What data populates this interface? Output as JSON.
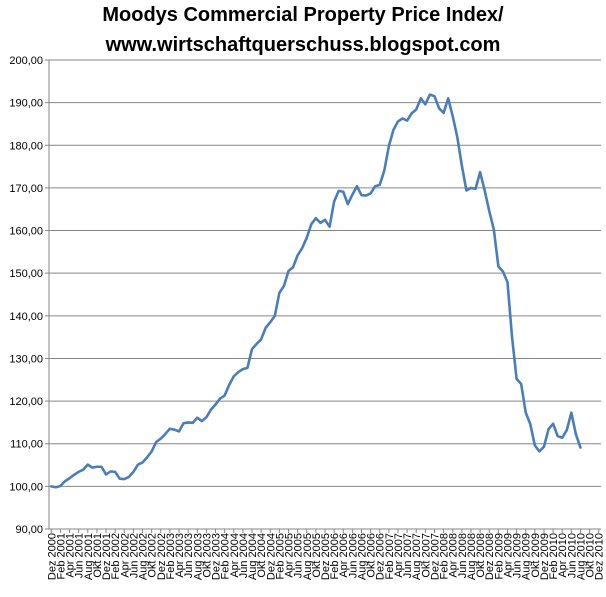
{
  "chart_data": {
    "type": "line",
    "title": "Moodys Commercial Property Price Index/",
    "subtitle": "www.wirtschaftquerschuss.blogspot.com",
    "xlabel": "",
    "ylabel": "",
    "ylim": [
      90,
      200
    ],
    "yticks": [
      90,
      100,
      110,
      120,
      130,
      140,
      150,
      160,
      170,
      180,
      190,
      200
    ],
    "ytick_labels": [
      "90,00",
      "100,00",
      "110,00",
      "120,00",
      "130,00",
      "140,00",
      "150,00",
      "160,00",
      "170,00",
      "180,00",
      "190,00",
      "200,00"
    ],
    "grid": "horizontal",
    "legend": "none",
    "x_tick_labels": [
      "Dez 2000",
      "Feb 2001",
      "Apr 2001",
      "Jun 2001",
      "Aug 2001",
      "Okt 2001",
      "Dez 2001",
      "Feb 2002",
      "Apr 2002",
      "Jun 2002",
      "Aug 2002",
      "Okt 2002",
      "Dez 2002",
      "Feb 2003",
      "Apr 2003",
      "Jun 2003",
      "Aug 2003",
      "Okt 2003",
      "Dez 2003",
      "Feb 2004",
      "Apr 2004",
      "Jun 2004",
      "Aug 2004",
      "Okt 2004",
      "Dez 2004",
      "Feb 2005",
      "Apr 2005",
      "Jun 2005",
      "Aug 2005",
      "Okt 2005",
      "Dez 2005",
      "Feb 2006",
      "Apr 2006",
      "Jun 2006",
      "Aug 2006",
      "Okt 2006",
      "Dez 2006",
      "Feb 2007",
      "Apr 2007",
      "Jun 2007",
      "Aug 2007",
      "Okt 2007",
      "Dez 2007",
      "Feb 2008",
      "Apr 2008",
      "Jun 2008",
      "Aug 2008",
      "Okt 2008",
      "Dez 2008",
      "Feb 2009",
      "Apr 2009",
      "Jun 2009",
      "Aug 2009",
      "Okt 2009",
      "Dez 2009",
      "Feb 2010",
      "Apr 2010",
      "Jun 2010",
      "Aug 2010",
      "Okt 2010",
      "Dez 2010"
    ],
    "x_slots": 121,
    "series": [
      {
        "name": "Moodys Commercial Property Price Index",
        "color": "#4a7ebb",
        "values": [
          100.0,
          99.8,
          100.1,
          101.2,
          101.9,
          102.7,
          103.4,
          103.9,
          105.1,
          104.4,
          104.6,
          104.6,
          102.8,
          103.5,
          103.4,
          101.8,
          101.7,
          102.2,
          103.4,
          105.1,
          105.6,
          106.8,
          108.2,
          110.4,
          111.2,
          112.3,
          113.5,
          113.3,
          112.9,
          114.8,
          115.0,
          114.9,
          116.1,
          115.3,
          116.2,
          118.0,
          119.2,
          120.6,
          121.3,
          123.8,
          125.8,
          126.8,
          127.5,
          127.8,
          132.2,
          133.4,
          134.5,
          137.2,
          138.5,
          140.0,
          145.4,
          147.0,
          150.5,
          151.4,
          154.2,
          155.9,
          158.3,
          161.5,
          162.9,
          161.8,
          162.5,
          160.9,
          166.8,
          169.3,
          169.1,
          166.2,
          168.4,
          170.4,
          168.3,
          168.2,
          168.7,
          170.4,
          170.7,
          174.1,
          179.8,
          183.6,
          185.6,
          186.3,
          185.8,
          187.5,
          188.4,
          191.0,
          189.6,
          191.9,
          191.5,
          188.7,
          187.6,
          191.0,
          186.8,
          181.9,
          175.2,
          169.4,
          170.0,
          169.8,
          173.7,
          169.4,
          164.6,
          160.3,
          151.6,
          150.4,
          147.9,
          135.0,
          125.2,
          124.0,
          117.3,
          114.6,
          109.6,
          108.2,
          109.3,
          113.4,
          114.7,
          111.8,
          111.4,
          113.2,
          117.3,
          112.2,
          109.1
        ]
      }
    ]
  }
}
